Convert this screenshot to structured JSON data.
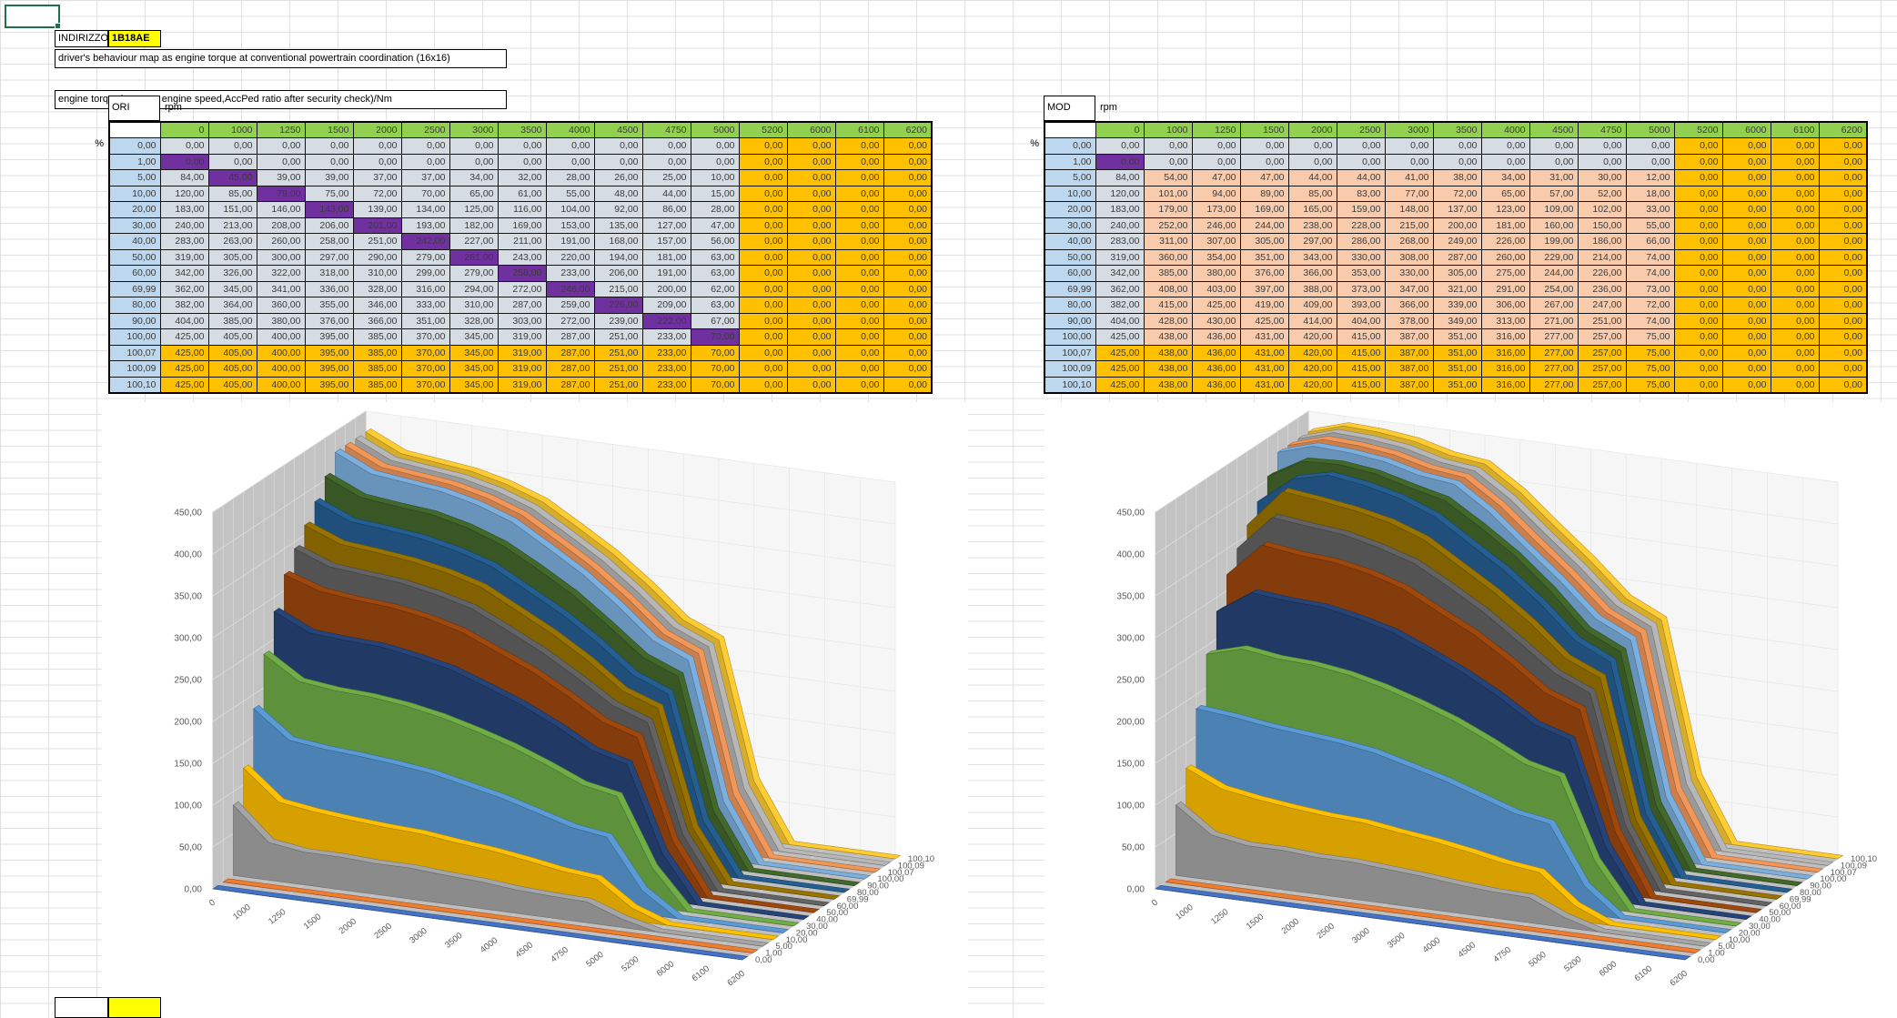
{
  "sheet": {
    "address_label": "INDIRIZZO",
    "address_value": "1B18AE",
    "title_box": "driver's behaviour map as engine torque at conventional powertrain coordination (16x16)",
    "units_box": "engine torque(average engine speed,AccPed ratio after security check)/Nm",
    "rpm_label": "rpm",
    "percent_label": "%"
  },
  "tables": {
    "ori_name": "ORI",
    "mod_name": "MOD"
  },
  "colors": {
    "header_green": "#92D050",
    "row_label_blue": "#BDD7EE",
    "cell_gray": "#D6DCE4",
    "cell_orange": "#FFC000",
    "orange_text": "#C00000",
    "cell_purple": "#7030A0",
    "purple_text": "#8F0000",
    "cell_pink": "#F8CBAD",
    "address_yellow": "#FFFF00",
    "selection_green": "#1E7145",
    "wall_gray": "#C3C3C3",
    "floor_gray": "#BFBFBF",
    "series": [
      "#4472C4",
      "#ED7D31",
      "#A5A5A5",
      "#FFC000",
      "#5B9BD5",
      "#70AD47",
      "#264478",
      "#9E480E",
      "#636363",
      "#997300",
      "#255E91",
      "#43682B",
      "#7CAFDD",
      "#F1975A",
      "#B7B7B7",
      "#FFCD33"
    ]
  },
  "chart_data": [
    {
      "type": "area",
      "projection": "3d",
      "title": "ORI",
      "x_unit": "rpm",
      "depth_unit": "%",
      "categories": [
        "0",
        "1000",
        "1250",
        "1500",
        "2000",
        "2500",
        "3000",
        "3500",
        "4000",
        "4500",
        "4750",
        "5000",
        "5200",
        "6000",
        "6100",
        "6200"
      ],
      "ylim": [
        0,
        450
      ],
      "ytick_step": 50,
      "grid": true,
      "legend": "none",
      "series": [
        {
          "name": "0,00",
          "values": [
            0,
            0,
            0,
            0,
            0,
            0,
            0,
            0,
            0,
            0,
            0,
            0,
            0,
            0,
            0,
            0
          ]
        },
        {
          "name": "1,00",
          "values": [
            0,
            0,
            0,
            0,
            0,
            0,
            0,
            0,
            0,
            0,
            0,
            0,
            0,
            0,
            0,
            0
          ]
        },
        {
          "name": "5,00",
          "values": [
            84,
            45,
            39,
            39,
            37,
            37,
            34,
            32,
            28,
            26,
            25,
            10,
            0,
            0,
            0,
            0
          ]
        },
        {
          "name": "10,00",
          "values": [
            120,
            85,
            79,
            75,
            72,
            70,
            65,
            61,
            55,
            48,
            44,
            15,
            0,
            0,
            0,
            0
          ]
        },
        {
          "name": "20,00",
          "values": [
            183,
            151,
            146,
            143,
            139,
            134,
            125,
            116,
            104,
            92,
            86,
            28,
            0,
            0,
            0,
            0
          ]
        },
        {
          "name": "30,00",
          "values": [
            240,
            213,
            208,
            206,
            201,
            193,
            182,
            169,
            153,
            135,
            127,
            47,
            0,
            0,
            0,
            0
          ]
        },
        {
          "name": "40,00",
          "values": [
            283,
            263,
            260,
            258,
            251,
            242,
            227,
            211,
            191,
            168,
            157,
            56,
            0,
            0,
            0,
            0
          ]
        },
        {
          "name": "50,00",
          "values": [
            319,
            305,
            300,
            297,
            290,
            279,
            261,
            243,
            220,
            194,
            181,
            63,
            0,
            0,
            0,
            0
          ]
        },
        {
          "name": "60,00",
          "values": [
            342,
            326,
            322,
            318,
            310,
            299,
            279,
            258,
            233,
            206,
            191,
            63,
            0,
            0,
            0,
            0
          ]
        },
        {
          "name": "69,99",
          "values": [
            362,
            345,
            341,
            336,
            328,
            316,
            294,
            272,
            246,
            215,
            200,
            62,
            0,
            0,
            0,
            0
          ]
        },
        {
          "name": "80,00",
          "values": [
            382,
            364,
            360,
            355,
            346,
            333,
            310,
            287,
            259,
            226,
            209,
            63,
            0,
            0,
            0,
            0
          ]
        },
        {
          "name": "90,00",
          "values": [
            404,
            385,
            380,
            376,
            366,
            351,
            328,
            303,
            272,
            239,
            222,
            67,
            0,
            0,
            0,
            0
          ]
        },
        {
          "name": "100,00",
          "values": [
            425,
            405,
            400,
            395,
            385,
            370,
            345,
            319,
            287,
            251,
            233,
            70,
            0,
            0,
            0,
            0
          ]
        },
        {
          "name": "100,07",
          "values": [
            425,
            405,
            400,
            395,
            385,
            370,
            345,
            319,
            287,
            251,
            233,
            70,
            0,
            0,
            0,
            0
          ]
        },
        {
          "name": "100,09",
          "values": [
            425,
            405,
            400,
            395,
            385,
            370,
            345,
            319,
            287,
            251,
            233,
            70,
            0,
            0,
            0,
            0
          ]
        },
        {
          "name": "100,10",
          "values": [
            425,
            405,
            400,
            395,
            385,
            370,
            345,
            319,
            287,
            251,
            233,
            70,
            0,
            0,
            0,
            0
          ]
        }
      ]
    },
    {
      "type": "area",
      "projection": "3d",
      "title": "MOD",
      "x_unit": "rpm",
      "depth_unit": "%",
      "categories": [
        "0",
        "1000",
        "1250",
        "1500",
        "2000",
        "2500",
        "3000",
        "3500",
        "4000",
        "4500",
        "4750",
        "5000",
        "5200",
        "6000",
        "6100",
        "6200"
      ],
      "ylim": [
        0,
        450
      ],
      "ytick_step": 50,
      "grid": true,
      "legend": "none",
      "series": [
        {
          "name": "0,00",
          "values": [
            0,
            0,
            0,
            0,
            0,
            0,
            0,
            0,
            0,
            0,
            0,
            0,
            0,
            0,
            0,
            0
          ]
        },
        {
          "name": "1,00",
          "values": [
            0,
            0,
            0,
            0,
            0,
            0,
            0,
            0,
            0,
            0,
            0,
            0,
            0,
            0,
            0,
            0
          ]
        },
        {
          "name": "5,00",
          "values": [
            84,
            54,
            47,
            47,
            44,
            44,
            41,
            38,
            34,
            31,
            30,
            12,
            0,
            0,
            0,
            0
          ]
        },
        {
          "name": "10,00",
          "values": [
            120,
            101,
            94,
            89,
            85,
            83,
            77,
            72,
            65,
            57,
            52,
            18,
            0,
            0,
            0,
            0
          ]
        },
        {
          "name": "20,00",
          "values": [
            183,
            179,
            173,
            169,
            165,
            159,
            148,
            137,
            123,
            109,
            102,
            33,
            0,
            0,
            0,
            0
          ]
        },
        {
          "name": "30,00",
          "values": [
            240,
            252,
            246,
            244,
            238,
            228,
            215,
            200,
            181,
            160,
            150,
            55,
            0,
            0,
            0,
            0
          ]
        },
        {
          "name": "40,00",
          "values": [
            283,
            311,
            307,
            305,
            297,
            286,
            268,
            249,
            226,
            199,
            186,
            66,
            0,
            0,
            0,
            0
          ]
        },
        {
          "name": "50,00",
          "values": [
            319,
            360,
            354,
            351,
            343,
            330,
            308,
            287,
            260,
            229,
            214,
            74,
            0,
            0,
            0,
            0
          ]
        },
        {
          "name": "60,00",
          "values": [
            342,
            385,
            380,
            376,
            366,
            353,
            330,
            305,
            275,
            244,
            226,
            74,
            0,
            0,
            0,
            0
          ]
        },
        {
          "name": "69,99",
          "values": [
            362,
            408,
            403,
            397,
            388,
            373,
            347,
            321,
            291,
            254,
            236,
            73,
            0,
            0,
            0,
            0
          ]
        },
        {
          "name": "80,00",
          "values": [
            382,
            415,
            425,
            419,
            409,
            393,
            366,
            339,
            306,
            267,
            247,
            72,
            0,
            0,
            0,
            0
          ]
        },
        {
          "name": "90,00",
          "values": [
            404,
            428,
            430,
            425,
            414,
            404,
            378,
            349,
            313,
            271,
            251,
            74,
            0,
            0,
            0,
            0
          ]
        },
        {
          "name": "100,00",
          "values": [
            425,
            438,
            436,
            431,
            420,
            415,
            387,
            351,
            316,
            277,
            257,
            75,
            0,
            0,
            0,
            0
          ]
        },
        {
          "name": "100,07",
          "values": [
            425,
            438,
            436,
            431,
            420,
            415,
            387,
            351,
            316,
            277,
            257,
            75,
            0,
            0,
            0,
            0
          ]
        },
        {
          "name": "100,09",
          "values": [
            425,
            438,
            436,
            431,
            420,
            415,
            387,
            351,
            316,
            277,
            257,
            75,
            0,
            0,
            0,
            0
          ]
        },
        {
          "name": "100,10",
          "values": [
            425,
            438,
            436,
            431,
            420,
            415,
            387,
            351,
            316,
            277,
            257,
            75,
            0,
            0,
            0,
            0
          ]
        }
      ]
    }
  ]
}
